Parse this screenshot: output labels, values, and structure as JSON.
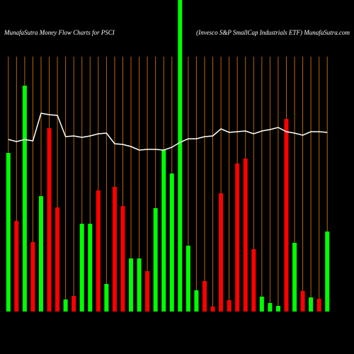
{
  "chart_data": {
    "type": "bar",
    "title": "MunafaSutra  Money Flow  Charts for PSCI",
    "subtitle": "(Invesco  S&P SmallCap Industrials ETF) MunafaSutra.com",
    "categories": [
      null,
      null,
      null,
      null,
      null,
      null,
      null,
      null,
      null,
      null,
      null,
      null,
      null,
      null,
      null,
      null,
      null,
      null,
      null,
      null,
      null,
      null,
      null,
      null,
      null,
      null,
      null,
      null,
      null,
      null,
      null,
      null,
      null,
      null,
      null,
      null,
      null,
      null,
      null,
      null
    ],
    "values": [
      224,
      128,
      319,
      98,
      163,
      259,
      147,
      17,
      22,
      124,
      124,
      171,
      39,
      176,
      149,
      75,
      75,
      57,
      146,
      229,
      195,
      440,
      93,
      30,
      43,
      7,
      167,
      16,
      209,
      216,
      88,
      21,
      12,
      8,
      272,
      97,
      29,
      20,
      18,
      113
    ],
    "colors": [
      "#00ff00",
      "#ff0000",
      "#00ff00",
      "#ff0000",
      "#00ff00",
      "#ff0000",
      "#ff0000",
      "#00ff00",
      "#ff0000",
      "#00ff00",
      "#00ff00",
      "#ff0000",
      "#00ff00",
      "#ff0000",
      "#ff0000",
      "#00ff00",
      "#00ff00",
      "#ff0000",
      "#00ff00",
      "#00ff00",
      "#00ff00",
      "#00ff00",
      "#00ff00",
      "#00ff00",
      "#ff0000",
      "#ff0000",
      "#ff0000",
      "#ff0000",
      "#ff0000",
      "#ff0000",
      "#ff0000",
      "#00ff00",
      "#00ff00",
      "#00ff00",
      "#ff0000",
      "#00ff00",
      "#ff0000",
      "#00ff00",
      "#ff0000",
      "#00ff00"
    ],
    "line": {
      "color": "#ffffff",
      "values": [
        243,
        240,
        243,
        241,
        280,
        278,
        277,
        247,
        248,
        246,
        248,
        251,
        252,
        237,
        236,
        233,
        228,
        229,
        229,
        228,
        232,
        239,
        244,
        244,
        247,
        248,
        258,
        253,
        254,
        255,
        251,
        255,
        257,
        260,
        254,
        252,
        249,
        254,
        254,
        253
      ]
    },
    "ylim": [
      0,
      440
    ],
    "grid_color": "#b8650a"
  }
}
